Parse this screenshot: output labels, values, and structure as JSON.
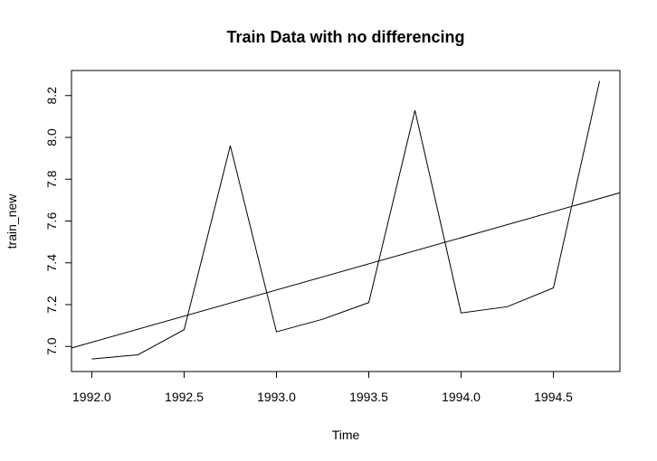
{
  "chart_data": {
    "type": "line",
    "title": "Train Data with no differencing",
    "xlabel": "Time",
    "ylabel": "train_new",
    "xlim": [
      1991.89,
      1994.86
    ],
    "ylim": [
      6.88,
      8.32
    ],
    "grid": false,
    "x_ticks": [
      1992.0,
      1992.5,
      1993.0,
      1993.5,
      1994.0,
      1994.5
    ],
    "x_tick_labels": [
      "1992.0",
      "1992.5",
      "1993.0",
      "1993.5",
      "1994.0",
      "1994.5"
    ],
    "y_ticks": [
      7.0,
      7.2,
      7.4,
      7.6,
      7.8,
      8.0,
      8.2
    ],
    "y_tick_labels": [
      "7.0",
      "7.2",
      "7.4",
      "7.6",
      "7.8",
      "8.0",
      "8.2"
    ],
    "series": [
      {
        "x": [
          1992.0,
          1992.25,
          1992.5,
          1992.75,
          1993.0,
          1993.25,
          1993.5,
          1993.75,
          1994.0,
          1994.25,
          1994.5,
          1994.75
        ],
        "values": [
          6.94,
          6.96,
          7.08,
          7.96,
          7.07,
          7.13,
          7.21,
          8.13,
          7.16,
          7.19,
          7.28,
          8.27
        ]
      }
    ],
    "abline": {
      "intercept": 7.02,
      "slope": 0.25,
      "x_origin": 1992.0
    }
  }
}
